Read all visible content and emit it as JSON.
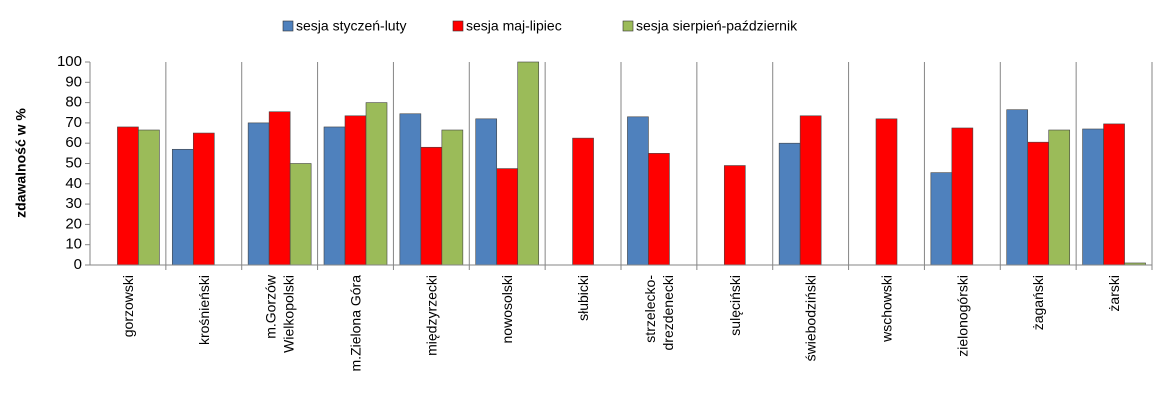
{
  "chart_data": {
    "type": "bar",
    "y_label": "zdawalność w %",
    "categories": [
      "gorzowski",
      "krośnieński",
      "m.Gorzów\nWielkopolski",
      "m.Zielona Góra",
      "międzyrzecki",
      "nowosolski",
      "słubicki",
      "strzelecko-\ndrezdenecki",
      "sulęciński",
      "świebodziński",
      "wschowski",
      "zielonogórski",
      "żagański",
      "żarski"
    ],
    "series": [
      {
        "name": "sesja styczeń-luty",
        "color": "#4f81bd",
        "values": [
          null,
          57,
          70,
          68,
          74.5,
          72,
          null,
          73,
          null,
          60,
          null,
          45.5,
          76.5,
          67
        ]
      },
      {
        "name": "sesja maj-lipiec",
        "color": "#ff0000",
        "values": [
          68,
          65,
          75.5,
          73.5,
          58,
          47.5,
          62.5,
          55,
          49,
          73.5,
          72,
          67.5,
          60.5,
          69.5
        ]
      },
      {
        "name": "sesja sierpień-październik",
        "color": "#9bbb59",
        "values": [
          66.5,
          null,
          50,
          80,
          66.5,
          100,
          null,
          null,
          null,
          null,
          null,
          null,
          66.5,
          1
        ]
      }
    ],
    "ylim": [
      0,
      100
    ],
    "yticks": [
      0,
      10,
      20,
      30,
      40,
      50,
      60,
      70,
      80,
      90,
      100
    ],
    "legend": "top"
  }
}
